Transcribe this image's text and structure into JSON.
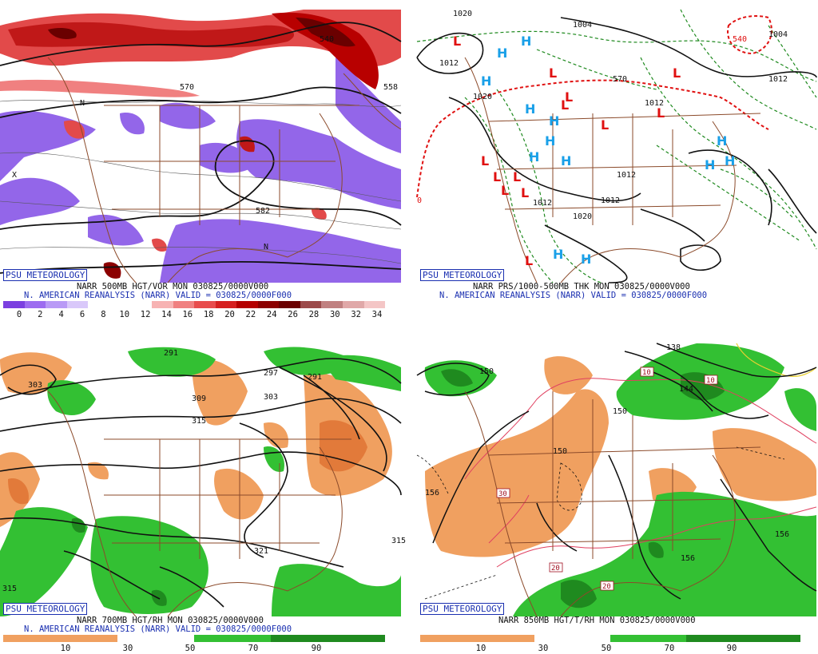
{
  "badge": "PSU METEOROLOGY",
  "panels": [
    {
      "id": "vort500",
      "caption1": "NARR 500MB HGT/VOR MON 030825/0000V000",
      "caption2": "N. AMERICAN REANALYSIS (NARR) VALID = 030825/0000F000",
      "scale_labels": [
        "0",
        "2",
        "4",
        "6",
        "8",
        "10",
        "12",
        "14",
        "16",
        "18",
        "20",
        "22",
        "24",
        "26",
        "28",
        "30",
        "32",
        "34"
      ],
      "scale_colors": [
        "#7b3fe0",
        "#9d6cf0",
        "#b99af6",
        "#d9c8fa",
        "#ffffff",
        "#ffffff",
        "#ffffff",
        "#f7b3b3",
        "#f08080",
        "#e84c4c",
        "#d62020",
        "#b50000",
        "#8c0000",
        "#6a0000",
        "#9c4a4a",
        "#c08080",
        "#e0a8a8",
        "#f4c6c6"
      ],
      "contour_labels": [
        "570",
        "582",
        "540",
        "558",
        "N",
        "X",
        "N"
      ]
    },
    {
      "id": "thk",
      "caption1": "NARR PRS/1000-500MB THK MON 030825/0000V000",
      "caption2": "N. AMERICAN REANALYSIS (NARR) VALID = 030825/0000F000",
      "contour_labels": [
        "1020",
        "1004",
        "1012",
        "1020",
        "570",
        "1012",
        "1012",
        "1012",
        "1012",
        "1020",
        "1004",
        "1012",
        "540",
        "0"
      ],
      "high_label": "H",
      "low_label": "L"
    },
    {
      "id": "rh700",
      "caption1": "NARR 700MB HGT/RH MON 030825/0000V000",
      "caption2": "N. AMERICAN REANALYSIS (NARR) VALID = 030825/0000F000",
      "scale_labels": [
        "10",
        "30",
        "50",
        "70",
        "90"
      ],
      "contour_labels": [
        "303",
        "291",
        "309",
        "297",
        "303",
        "291",
        "315",
        "315",
        "321",
        "315"
      ]
    },
    {
      "id": "t850",
      "caption1": "NARR 850MB HGT/T/RH MON 030825/0000V000",
      "scale_labels": [
        "10",
        "30",
        "50",
        "70",
        "90"
      ],
      "contour_labels": [
        "138",
        "150",
        "144",
        "156",
        "150",
        "156",
        "150",
        "156",
        "10",
        "10",
        "30",
        "20",
        "20"
      ]
    }
  ]
}
